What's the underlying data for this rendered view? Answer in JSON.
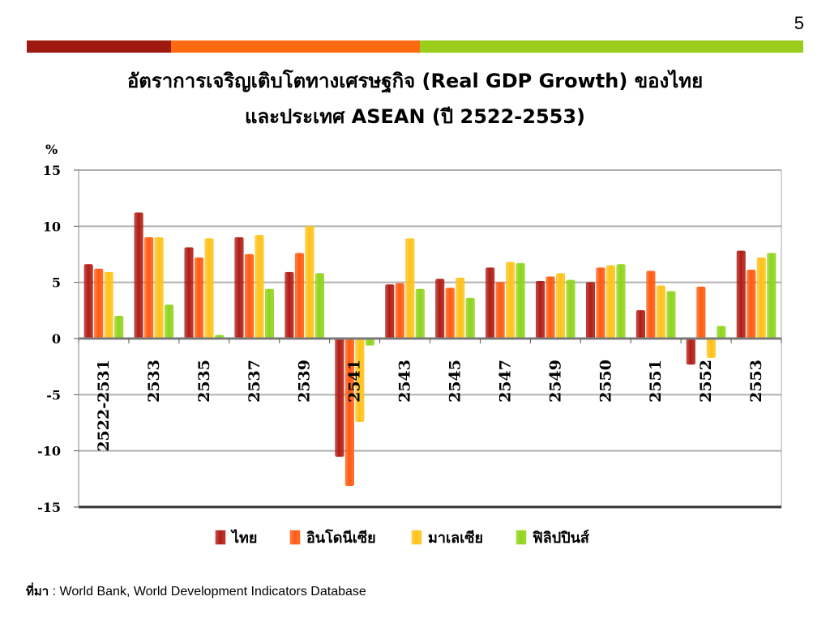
{
  "page_number": "5",
  "title": {
    "line1": "อัตราการเจริญเติบโตทางเศรษฐกิจ (Real GDP Growth) ของไทย",
    "line2": "และประเทศ ASEAN (ปี 2522-2553)"
  },
  "source": {
    "label": "ที่มา",
    "text": " : World Bank, World Development Indicators Database"
  },
  "chart_data": {
    "type": "bar",
    "title": "อัตราการเจริญเติบโตทางเศรษฐกิจ (Real GDP Growth) ของไทยและประเทศ ASEAN (ปี 2522-2553)",
    "ylabel": "%",
    "xlabel": "",
    "ylim": [
      -15,
      15
    ],
    "yticks": [
      15,
      10,
      5,
      0,
      -5,
      -10,
      -15
    ],
    "grid": true,
    "legend_position": "bottom",
    "categories": [
      "2522-2531",
      "2533",
      "2535",
      "2537",
      "2539",
      "2541",
      "2543",
      "2545",
      "2547",
      "2549",
      "2550",
      "2551",
      "2552",
      "2553"
    ],
    "series": [
      {
        "name": "ไทย",
        "color": "#b01c14",
        "values": [
          6.6,
          11.2,
          8.1,
          9.0,
          5.9,
          -10.5,
          4.8,
          5.3,
          6.3,
          5.1,
          5.0,
          2.5,
          -2.3,
          7.8
        ]
      },
      {
        "name": "อินโดนีเซีย",
        "color": "#ff5a10",
        "values": [
          6.2,
          9.0,
          7.2,
          7.5,
          7.6,
          -13.1,
          4.9,
          4.5,
          5.0,
          5.5,
          6.3,
          6.0,
          4.6,
          6.1
        ]
      },
      {
        "name": "มาเลเซีย",
        "color": "#ffc21a",
        "values": [
          5.9,
          9.0,
          8.9,
          9.2,
          10.0,
          -7.4,
          8.9,
          5.4,
          6.8,
          5.8,
          6.5,
          4.7,
          -1.7,
          7.2
        ]
      },
      {
        "name": "ฟิลิปปินส์",
        "color": "#8fd41c",
        "values": [
          2.0,
          3.0,
          0.3,
          4.4,
          5.8,
          -0.6,
          4.4,
          3.6,
          6.7,
          5.2,
          6.6,
          4.2,
          1.1,
          7.6
        ]
      }
    ]
  }
}
